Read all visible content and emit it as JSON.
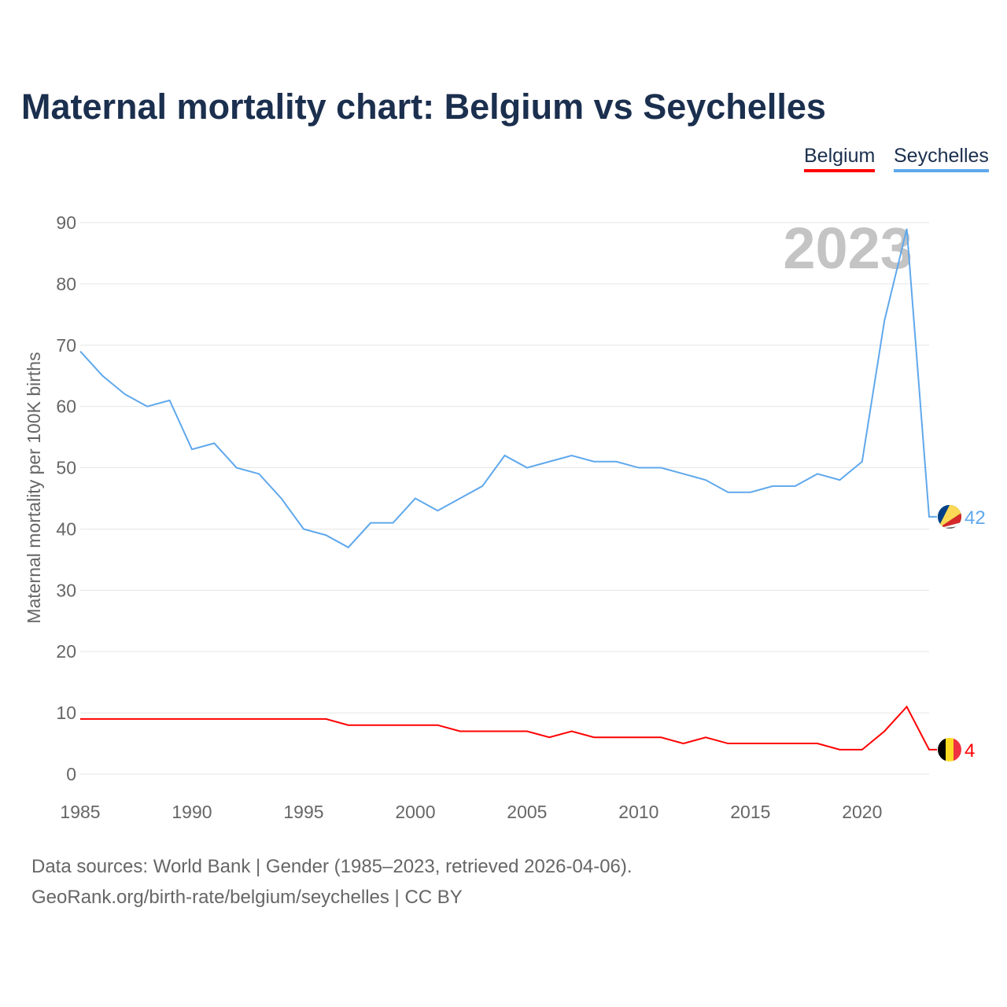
{
  "title": "Maternal mortality chart: Belgium vs Seychelles",
  "footer": {
    "line1": "Data sources: World Bank | Gender (1985–2023, retrieved 2026-04-06).",
    "line2": "GeoRank.org/birth-rate/belgium/seychelles | CC BY"
  },
  "chart_data": {
    "type": "line",
    "title": "Maternal mortality chart: Belgium vs Seychelles",
    "xlabel": "",
    "ylabel": "Maternal mortality per 100K births",
    "year_watermark": "2023",
    "xlim": [
      1985,
      2023
    ],
    "ylim": [
      0,
      90
    ],
    "x_ticks": [
      "1985",
      "1990",
      "1995",
      "2000",
      "2005",
      "2010",
      "2015",
      "2020"
    ],
    "y_ticks": [
      "0",
      "10",
      "20",
      "30",
      "40",
      "50",
      "60",
      "70",
      "80",
      "90"
    ],
    "grid": true,
    "legend_position": "top-right",
    "x": [
      1985,
      1986,
      1987,
      1988,
      1989,
      1990,
      1991,
      1992,
      1993,
      1994,
      1995,
      1996,
      1997,
      1998,
      1999,
      2000,
      2001,
      2002,
      2003,
      2004,
      2005,
      2006,
      2007,
      2008,
      2009,
      2010,
      2011,
      2012,
      2013,
      2014,
      2015,
      2016,
      2017,
      2018,
      2019,
      2020,
      2021,
      2022,
      2023
    ],
    "series": [
      {
        "name": "Belgium",
        "color": "#ff0000",
        "end_label": "4",
        "flag": "belgium-flag-icon",
        "values": [
          9,
          9,
          9,
          9,
          9,
          9,
          9,
          9,
          9,
          9,
          9,
          9,
          8,
          8,
          8,
          8,
          8,
          7,
          7,
          7,
          7,
          6,
          7,
          6,
          6,
          6,
          6,
          5,
          6,
          5,
          5,
          5,
          5,
          5,
          4,
          4,
          7,
          11,
          4
        ]
      },
      {
        "name": "Seychelles",
        "color": "#5fa8ec",
        "end_label": "42",
        "flag": "seychelles-flag-icon",
        "values": [
          69,
          65,
          62,
          60,
          61,
          53,
          54,
          50,
          49,
          45,
          40,
          39,
          37,
          41,
          41,
          45,
          43,
          45,
          47,
          52,
          50,
          51,
          52,
          51,
          51,
          50,
          50,
          49,
          48,
          46,
          46,
          47,
          47,
          49,
          48,
          51,
          74,
          89,
          42
        ]
      }
    ]
  }
}
